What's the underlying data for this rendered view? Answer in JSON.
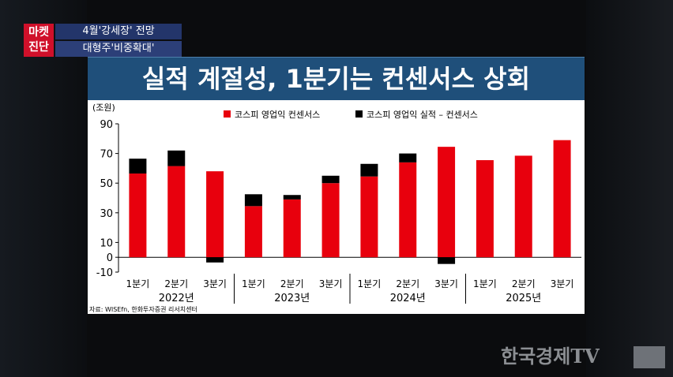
{
  "header": {
    "badge_line1": "마켓",
    "badge_line2": "진단",
    "headline1": "4월'강세장' 전망",
    "headline2": "대형주'비중확대'"
  },
  "title": "실적 계절성, 1분기는 컨센서스 상회",
  "watermark": "한국경제TV",
  "colors": {
    "red": "#e8000d",
    "black": "#000000"
  },
  "chart_data": {
    "type": "bar",
    "stacked": true,
    "unit": "(조원)",
    "legend": [
      "코스피 영업익 컨센서스",
      "코스피 영업익 실적 – 컨센서스"
    ],
    "legend_position": "top",
    "yticks": [
      90,
      70,
      50,
      30,
      10,
      0,
      -10
    ],
    "ylim": [
      -10,
      90
    ],
    "groups": [
      {
        "year": "2022년",
        "quarters": [
          "1분기",
          "2분기",
          "3분기"
        ]
      },
      {
        "year": "2023년",
        "quarters": [
          "1분기",
          "2분기",
          "3분기"
        ]
      },
      {
        "year": "2024년",
        "quarters": [
          "1분기",
          "2분기",
          "3분기"
        ]
      },
      {
        "year": "2025년",
        "quarters": [
          "1분기",
          "2분기",
          "3분기"
        ]
      }
    ],
    "series": [
      {
        "name": "코스피 영업익 컨센서스",
        "color": "#e8000d",
        "values": [
          56.5,
          61.5,
          58,
          34.5,
          39,
          50,
          54.5,
          64,
          74.5,
          65.5,
          68.5,
          79
        ]
      },
      {
        "name": "코스피 영업익 실적 – 컨센서스",
        "color": "#000000",
        "values": [
          10,
          10.5,
          -3.5,
          8,
          3,
          5,
          8.5,
          6,
          -4.5,
          0,
          0,
          0
        ]
      }
    ],
    "source": "자료: WISEfn, 한화투자증권 리서치센터"
  }
}
